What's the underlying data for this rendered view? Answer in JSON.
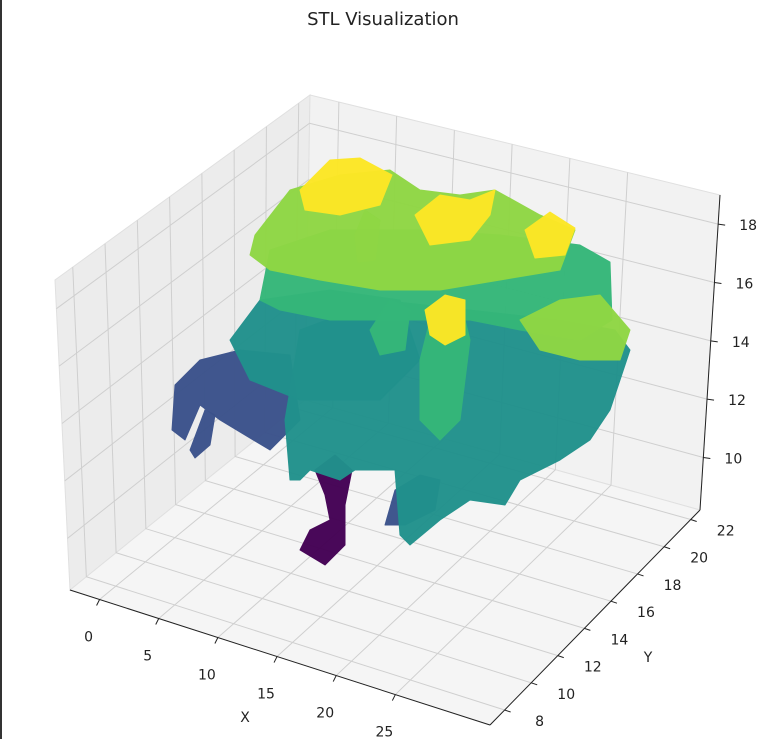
{
  "chart_data": {
    "type": "surface3d",
    "title": "STL Visualization",
    "xlabel": "X",
    "ylabel": "Y",
    "xlim": [
      -2.5,
      33
    ],
    "ylim": [
      6.9,
      22.7
    ],
    "zlim": [
      8.2,
      19
    ],
    "xticks": [
      0,
      5,
      10,
      15,
      20,
      25
    ],
    "yticks": [
      8,
      10,
      12,
      14,
      16,
      18,
      20,
      22
    ],
    "zticks": [
      10,
      12,
      14,
      16,
      18
    ],
    "grid": true,
    "colormap": "viridis"
  }
}
